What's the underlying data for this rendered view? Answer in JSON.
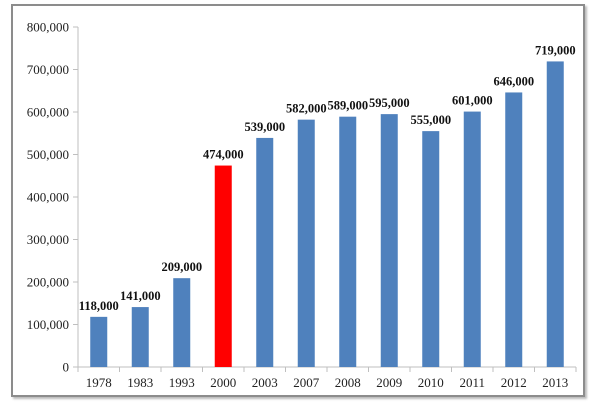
{
  "chart_data": {
    "type": "bar",
    "categories": [
      "1978",
      "1983",
      "1993",
      "2000",
      "2003",
      "2007",
      "2008",
      "2009",
      "2010",
      "2011",
      "2012",
      "2013"
    ],
    "values": [
      118000,
      141000,
      209000,
      474000,
      539000,
      582000,
      589000,
      595000,
      555000,
      601000,
      646000,
      719000
    ],
    "data_labels": [
      "118,000",
      "141,000",
      "209,000",
      "474,000",
      "539,000",
      "582,000",
      "589,000",
      "595,000",
      "555,000",
      "601,000",
      "646,000",
      "719,000"
    ],
    "highlight_category": "2000",
    "colors": {
      "bar": "#4f81bd",
      "highlight": "#ff0000"
    },
    "ylim": [
      0,
      800000
    ],
    "yticks": [
      "0",
      "100,000",
      "200,000",
      "300,000",
      "400,000",
      "500,000",
      "600,000",
      "700,000",
      "800,000"
    ],
    "grid": false,
    "legend": "none",
    "title": "",
    "xlabel": "",
    "ylabel": ""
  }
}
